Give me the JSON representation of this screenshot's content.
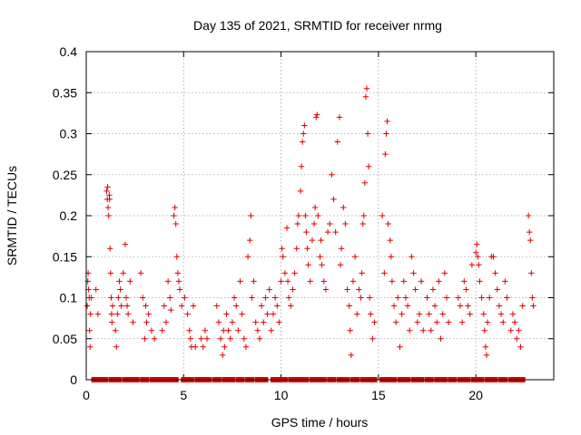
{
  "chart_data": {
    "type": "scatter",
    "title": "Day 135 of 2021, SRMTID for receiver nrmg",
    "xlabel": "GPS time / hours",
    "ylabel": "SRMTID / TECUs",
    "xlim": [
      0,
      24
    ],
    "ylim": [
      0,
      0.4
    ],
    "x_ticks": [
      "0",
      "5",
      "10",
      "15",
      "20"
    ],
    "x_tick_values": [
      0,
      5,
      10,
      15,
      20
    ],
    "y_ticks": [
      "0",
      "0.05",
      "0.1",
      "0.15",
      "0.2",
      "0.25",
      "0.3",
      "0.35",
      "0.4"
    ],
    "y_tick_values": [
      0,
      0.05,
      0.1,
      0.15,
      0.2,
      0.25,
      0.3,
      0.35,
      0.4
    ],
    "grid": true,
    "color": "#e00000",
    "marker": "plus",
    "series": [
      {
        "name": "SRMTID",
        "points": [
          [
            0.05,
            0.09
          ],
          [
            0.08,
            0.12
          ],
          [
            0.1,
            0.13
          ],
          [
            0.12,
            0.11
          ],
          [
            0.15,
            0.1
          ],
          [
            0.17,
            0.06
          ],
          [
            0.2,
            0.04
          ],
          [
            0.22,
            0.08
          ],
          [
            0.25,
            0.1
          ],
          [
            0.5,
            0.11
          ],
          [
            0.6,
            0.08
          ],
          [
            1.05,
            0.23
          ],
          [
            1.08,
            0.22
          ],
          [
            1.1,
            0.235
          ],
          [
            1.12,
            0.21
          ],
          [
            1.15,
            0.2
          ],
          [
            1.18,
            0.225
          ],
          [
            1.2,
            0.22
          ],
          [
            1.22,
            0.16
          ],
          [
            1.25,
            0.13
          ],
          [
            1.28,
            0.1
          ],
          [
            1.3,
            0.08
          ],
          [
            1.32,
            0.07
          ],
          [
            1.35,
            0.09
          ],
          [
            1.5,
            0.06
          ],
          [
            1.55,
            0.04
          ],
          [
            1.6,
            0.08
          ],
          [
            1.65,
            0.1
          ],
          [
            1.7,
            0.12
          ],
          [
            1.75,
            0.11
          ],
          [
            1.8,
            0.09
          ],
          [
            1.9,
            0.13
          ],
          [
            2.0,
            0.165
          ],
          [
            2.05,
            0.1
          ],
          [
            2.1,
            0.09
          ],
          [
            2.15,
            0.08
          ],
          [
            2.25,
            0.12
          ],
          [
            2.4,
            0.07
          ],
          [
            2.8,
            0.13
          ],
          [
            2.9,
            0.1
          ],
          [
            3.0,
            0.05
          ],
          [
            3.05,
            0.09
          ],
          [
            3.1,
            0.07
          ],
          [
            3.2,
            0.08
          ],
          [
            3.35,
            0.06
          ],
          [
            3.5,
            0.05
          ],
          [
            3.9,
            0.06
          ],
          [
            4.0,
            0.09
          ],
          [
            4.1,
            0.07
          ],
          [
            4.2,
            0.12
          ],
          [
            4.3,
            0.1
          ],
          [
            4.35,
            0.085
          ],
          [
            4.5,
            0.2
          ],
          [
            4.55,
            0.21
          ],
          [
            4.6,
            0.19
          ],
          [
            4.65,
            0.15
          ],
          [
            4.7,
            0.13
          ],
          [
            4.75,
            0.12
          ],
          [
            4.8,
            0.11
          ],
          [
            4.9,
            0.09
          ],
          [
            5.05,
            0.1
          ],
          [
            5.2,
            0.08
          ],
          [
            5.3,
            0.06
          ],
          [
            5.35,
            0.05
          ],
          [
            5.4,
            0.04
          ],
          [
            5.5,
            0.09
          ],
          [
            5.6,
            0.04
          ],
          [
            5.9,
            0.05
          ],
          [
            6.0,
            0.04
          ],
          [
            6.1,
            0.06
          ],
          [
            6.2,
            0.05
          ],
          [
            6.7,
            0.09
          ],
          [
            6.8,
            0.07
          ],
          [
            6.9,
            0.05
          ],
          [
            7.0,
            0.03
          ],
          [
            7.05,
            0.06
          ],
          [
            7.1,
            0.04
          ],
          [
            7.2,
            0.08
          ],
          [
            7.3,
            0.06
          ],
          [
            7.4,
            0.05
          ],
          [
            7.5,
            0.07
          ],
          [
            7.6,
            0.1
          ],
          [
            7.7,
            0.09
          ],
          [
            7.8,
            0.06
          ],
          [
            7.9,
            0.12
          ],
          [
            8.0,
            0.08
          ],
          [
            8.1,
            0.05
          ],
          [
            8.2,
            0.04
          ],
          [
            8.3,
            0.15
          ],
          [
            8.4,
            0.17
          ],
          [
            8.45,
            0.2
          ],
          [
            8.5,
            0.1
          ],
          [
            8.6,
            0.12
          ],
          [
            8.7,
            0.07
          ],
          [
            8.8,
            0.06
          ],
          [
            8.9,
            0.05
          ],
          [
            9.0,
            0.09
          ],
          [
            9.1,
            0.07
          ],
          [
            9.2,
            0.1
          ],
          [
            9.3,
            0.08
          ],
          [
            9.4,
            0.11
          ],
          [
            9.5,
            0.06
          ],
          [
            9.6,
            0.08
          ],
          [
            9.7,
            0.1
          ],
          [
            9.8,
            0.09
          ],
          [
            9.9,
            0.07
          ],
          [
            10.0,
            0.12
          ],
          [
            10.05,
            0.16
          ],
          [
            10.1,
            0.15
          ],
          [
            10.2,
            0.13
          ],
          [
            10.3,
            0.185
          ],
          [
            10.35,
            0.12
          ],
          [
            10.4,
            0.1
          ],
          [
            10.5,
            0.09
          ],
          [
            10.6,
            0.11
          ],
          [
            10.7,
            0.13
          ],
          [
            10.8,
            0.16
          ],
          [
            10.85,
            0.19
          ],
          [
            10.9,
            0.2
          ],
          [
            11.0,
            0.23
          ],
          [
            11.05,
            0.26
          ],
          [
            11.1,
            0.29
          ],
          [
            11.15,
            0.3
          ],
          [
            11.2,
            0.31
          ],
          [
            11.25,
            0.2
          ],
          [
            11.3,
            0.18
          ],
          [
            11.35,
            0.16
          ],
          [
            11.4,
            0.14
          ],
          [
            11.5,
            0.12
          ],
          [
            11.6,
            0.17
          ],
          [
            11.7,
            0.19
          ],
          [
            11.75,
            0.21
          ],
          [
            11.8,
            0.32
          ],
          [
            11.85,
            0.323
          ],
          [
            11.9,
            0.2
          ],
          [
            12.0,
            0.15
          ],
          [
            12.05,
            0.17
          ],
          [
            12.1,
            0.14
          ],
          [
            12.2,
            0.12
          ],
          [
            12.3,
            0.11
          ],
          [
            12.4,
            0.18
          ],
          [
            12.5,
            0.19
          ],
          [
            12.6,
            0.25
          ],
          [
            12.7,
            0.22
          ],
          [
            12.8,
            0.18
          ],
          [
            12.9,
            0.29
          ],
          [
            13.0,
            0.32
          ],
          [
            13.05,
            0.14
          ],
          [
            13.1,
            0.16
          ],
          [
            13.2,
            0.21
          ],
          [
            13.3,
            0.19
          ],
          [
            13.4,
            0.11
          ],
          [
            13.5,
            0.09
          ],
          [
            13.55,
            0.06
          ],
          [
            13.6,
            0.03
          ],
          [
            13.7,
            0.12
          ],
          [
            13.8,
            0.15
          ],
          [
            13.9,
            0.08
          ],
          [
            14.0,
            0.11
          ],
          [
            14.1,
            0.1
          ],
          [
            14.15,
            0.13
          ],
          [
            14.2,
            0.19
          ],
          [
            14.25,
            0.2
          ],
          [
            14.3,
            0.24
          ],
          [
            14.35,
            0.345
          ],
          [
            14.4,
            0.355
          ],
          [
            14.45,
            0.3
          ],
          [
            14.5,
            0.26
          ],
          [
            14.55,
            0.1
          ],
          [
            14.6,
            0.08
          ],
          [
            14.7,
            0.05
          ],
          [
            14.8,
            0.07
          ],
          [
            15.2,
            0.2
          ],
          [
            15.3,
            0.13
          ],
          [
            15.35,
            0.275
          ],
          [
            15.4,
            0.3
          ],
          [
            15.45,
            0.315
          ],
          [
            15.5,
            0.19
          ],
          [
            15.6,
            0.17
          ],
          [
            15.65,
            0.15
          ],
          [
            15.7,
            0.12
          ],
          [
            15.8,
            0.09
          ],
          [
            15.9,
            0.07
          ],
          [
            16.0,
            0.1
          ],
          [
            16.1,
            0.04
          ],
          [
            16.2,
            0.08
          ],
          [
            16.3,
            0.12
          ],
          [
            16.4,
            0.1
          ],
          [
            16.5,
            0.09
          ],
          [
            16.6,
            0.06
          ],
          [
            16.7,
            0.15
          ],
          [
            16.8,
            0.13
          ],
          [
            16.9,
            0.11
          ],
          [
            17.0,
            0.07
          ],
          [
            17.1,
            0.08
          ],
          [
            17.2,
            0.12
          ],
          [
            17.3,
            0.06
          ],
          [
            17.5,
            0.1
          ],
          [
            17.6,
            0.08
          ],
          [
            17.7,
            0.06
          ],
          [
            17.8,
            0.11
          ],
          [
            17.9,
            0.09
          ],
          [
            18.0,
            0.07
          ],
          [
            18.1,
            0.12
          ],
          [
            18.2,
            0.05
          ],
          [
            18.3,
            0.08
          ],
          [
            18.4,
            0.13
          ],
          [
            18.5,
            0.1
          ],
          [
            18.6,
            0.07
          ],
          [
            19.1,
            0.1
          ],
          [
            19.2,
            0.09
          ],
          [
            19.3,
            0.07
          ],
          [
            19.4,
            0.12
          ],
          [
            19.5,
            0.11
          ],
          [
            19.6,
            0.09
          ],
          [
            19.7,
            0.08
          ],
          [
            19.8,
            0.14
          ],
          [
            20.0,
            0.155
          ],
          [
            20.05,
            0.165
          ],
          [
            20.1,
            0.15
          ],
          [
            20.15,
            0.14
          ],
          [
            20.2,
            0.12
          ],
          [
            20.3,
            0.1
          ],
          [
            20.4,
            0.08
          ],
          [
            20.45,
            0.06
          ],
          [
            20.5,
            0.04
          ],
          [
            20.55,
            0.03
          ],
          [
            20.6,
            0.07
          ],
          [
            20.7,
            0.1
          ],
          [
            20.8,
            0.15
          ],
          [
            20.9,
            0.15
          ],
          [
            21.0,
            0.13
          ],
          [
            21.1,
            0.11
          ],
          [
            21.2,
            0.09
          ],
          [
            21.3,
            0.08
          ],
          [
            21.4,
            0.07
          ],
          [
            21.5,
            0.12
          ],
          [
            21.6,
            0.1
          ],
          [
            21.8,
            0.06
          ],
          [
            21.9,
            0.08
          ],
          [
            22.0,
            0.07
          ],
          [
            22.1,
            0.05
          ],
          [
            22.2,
            0.06
          ],
          [
            22.3,
            0.04
          ],
          [
            22.4,
            0.09
          ],
          [
            22.7,
            0.2
          ],
          [
            22.75,
            0.18
          ],
          [
            22.8,
            0.17
          ],
          [
            22.85,
            0.13
          ],
          [
            22.9,
            0.1
          ],
          [
            22.95,
            0.09
          ]
        ]
      }
    ],
    "zero_points_x": [
      0.4,
      0.6,
      0.8,
      1.0,
      1.3,
      1.5,
      1.7,
      2.0,
      2.2,
      2.4,
      2.6,
      2.9,
      3.1,
      3.4,
      3.6,
      3.8,
      4.0,
      4.2,
      4.4,
      4.6,
      5.0,
      5.2,
      5.4,
      5.7,
      5.9,
      6.1,
      6.3,
      6.6,
      6.8,
      7.1,
      7.3,
      7.5,
      7.8,
      8.0,
      8.3,
      8.5,
      8.8,
      9.0,
      9.2,
      9.6,
      9.8,
      10.0,
      10.2,
      10.5,
      10.7,
      10.9,
      11.1,
      11.3,
      11.6,
      11.8,
      12.0,
      12.2,
      12.5,
      12.7,
      13.0,
      13.2,
      13.4,
      13.7,
      13.9,
      14.2,
      14.4,
      14.6,
      14.8,
      15.2,
      15.4,
      15.6,
      15.8,
      16.1,
      16.3,
      16.5,
      16.8,
      17.0,
      17.2,
      17.5,
      17.7,
      18.0,
      18.2,
      18.4,
      18.7,
      18.9,
      19.2,
      19.4,
      19.6,
      19.9,
      20.1,
      20.3,
      20.6,
      20.8,
      21.0,
      21.3,
      21.5,
      21.8,
      22.0,
      22.2,
      22.4
    ]
  }
}
